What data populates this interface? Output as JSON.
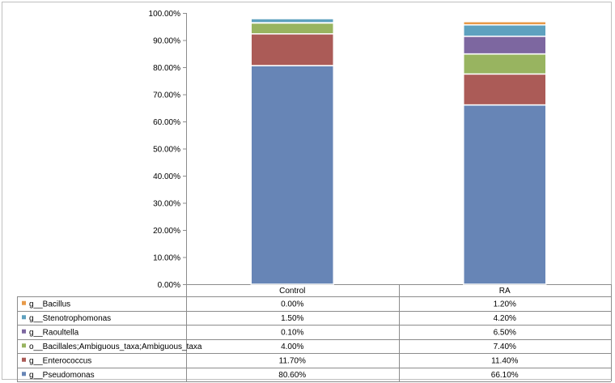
{
  "chart_data": {
    "type": "bar",
    "stacked": true,
    "categories": [
      "Control",
      "RA"
    ],
    "ylim": [
      0,
      100
    ],
    "yticks": [
      "0.00%",
      "10.00%",
      "20.00%",
      "30.00%",
      "40.00%",
      "50.00%",
      "60.00%",
      "70.00%",
      "80.00%",
      "90.00%",
      "100.00%"
    ],
    "grid": false,
    "legend": "data-table-below",
    "series": [
      {
        "name": "g__Pseudomonas",
        "color": "#6785b6",
        "values": [
          80.6,
          66.1
        ],
        "labels": [
          "80.60%",
          "66.10%"
        ]
      },
      {
        "name": "g__Enterococcus",
        "color": "#ab5b57",
        "values": [
          11.7,
          11.4
        ],
        "labels": [
          "11.70%",
          "11.40%"
        ]
      },
      {
        "name": "o__Bacillales;Ambiguous_taxa;Ambiguous_taxa",
        "color": "#98b460",
        "values": [
          4.0,
          7.4
        ],
        "labels": [
          "4.00%",
          "7.40%"
        ]
      },
      {
        "name": "g__Raoultella",
        "color": "#7d67a0",
        "values": [
          0.1,
          6.5
        ],
        "labels": [
          "0.10%",
          "6.50%"
        ]
      },
      {
        "name": "g__Stenotrophomonas",
        "color": "#5ea1bf",
        "values": [
          1.5,
          4.2
        ],
        "labels": [
          "1.50%",
          "4.20%"
        ]
      },
      {
        "name": "g__Bacillus",
        "color": "#e89a49",
        "values": [
          0.0,
          1.2
        ],
        "labels": [
          "0.00%",
          "1.20%"
        ]
      }
    ]
  }
}
